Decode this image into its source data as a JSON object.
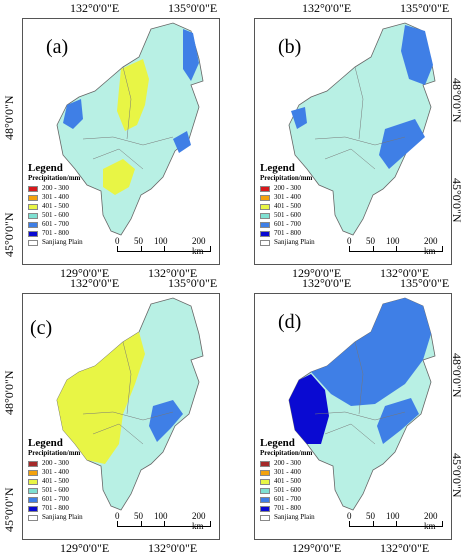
{
  "axis_labels": {
    "top_left": "132°0'0\"E",
    "top_right": "135°0'0\"E",
    "bottom_left": "129°0'0\"E",
    "bottom_right": "132°0'0\"E",
    "side_upper": "48°0'0\"N",
    "side_lower": "45°0'0\"N"
  },
  "panels": [
    {
      "label": "(a)"
    },
    {
      "label": "(b)"
    },
    {
      "label": "(c)"
    },
    {
      "label": "(d)"
    }
  ],
  "legend": {
    "title": "Legend",
    "subtitle": "Precipitation/mm",
    "items": [
      {
        "label": "200 - 300",
        "color": "#d7191c"
      },
      {
        "label": "301 - 400",
        "color": "#f4a20c"
      },
      {
        "label": "401 - 500",
        "color": "#e8f545"
      },
      {
        "label": "501 - 600",
        "color": "#7fe0d2"
      },
      {
        "label": "601 - 700",
        "color": "#3f7fe6"
      },
      {
        "label": "701 - 800",
        "color": "#0a0ad2"
      },
      {
        "label": "Sanjiang Plain",
        "color": "#ffffff"
      }
    ]
  },
  "legend_cd_items": [
    {
      "label": "200 - 300",
      "color": "#a52a2a"
    },
    {
      "label": "301 - 400",
      "color": "#f4a20c"
    },
    {
      "label": "401 - 500",
      "color": "#e8f545"
    },
    {
      "label": "501 - 600",
      "color": "#7fe0d2"
    },
    {
      "label": "601 - 700",
      "color": "#3f7fe6"
    },
    {
      "label": "701 - 800",
      "color": "#0a0ad2"
    },
    {
      "label": "Sanjiang Plain",
      "color": "#ffffff"
    }
  ],
  "scalebar": {
    "ticks": [
      "0",
      "50",
      "100",
      "200 km"
    ]
  }
}
